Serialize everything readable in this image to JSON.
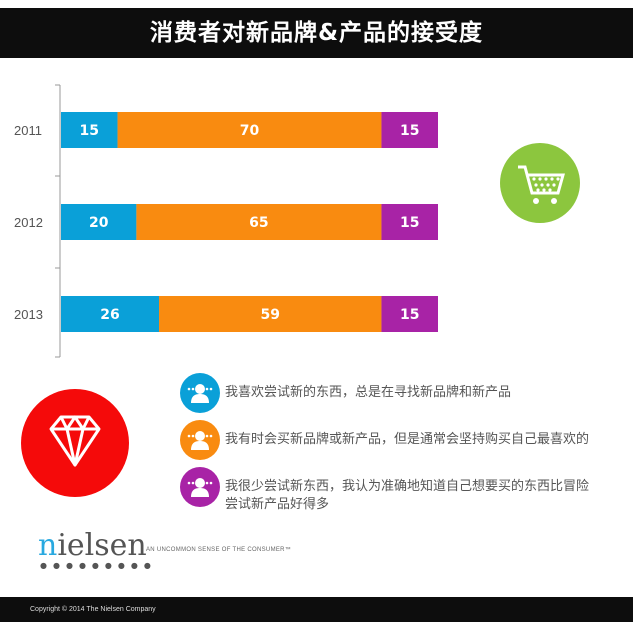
{
  "title": "消费者对新品牌&产品的接受度",
  "chart_data": {
    "type": "bar",
    "stacked": true,
    "orientation": "horizontal",
    "categories": [
      "2011",
      "2012",
      "2013"
    ],
    "series": [
      {
        "name": "我喜欢尝试新的东西，总是在寻找新品牌和新产品",
        "color": "#0aa0d8",
        "values": [
          15,
          20,
          26
        ]
      },
      {
        "name": "我有时会买新品牌或新产品，但是通常会坚持购买自己最喜欢的",
        "color": "#f98b10",
        "values": [
          70,
          65,
          59
        ]
      },
      {
        "name": "我很少尝试新东西，我认为准确地知道自己想要买的东西比冒险尝试新产品好得多",
        "color": "#a823a6",
        "values": [
          15,
          15,
          15
        ]
      }
    ],
    "xlim": [
      0,
      100
    ]
  },
  "legend": [
    {
      "line1": "我喜欢尝试新的东西，总是在寻找新品牌和新产品",
      "line2": ""
    },
    {
      "line1": "我有时会买新品牌或新产品，但是通常会坚持购买自己最喜欢的",
      "line2": ""
    },
    {
      "line1": "我很少尝试新东西，我认为准确地知道自己想要买的东西比冒险",
      "line2": "尝试新产品好得多"
    }
  ],
  "logo": {
    "n": "n",
    "rest": "ielsen",
    "dots": "●●●●●●●●●"
  },
  "tagline": "AN UNCOMMON SENSE OF THE CONSUMER™",
  "footer": "Copyright © 2014 The Nielsen Company"
}
